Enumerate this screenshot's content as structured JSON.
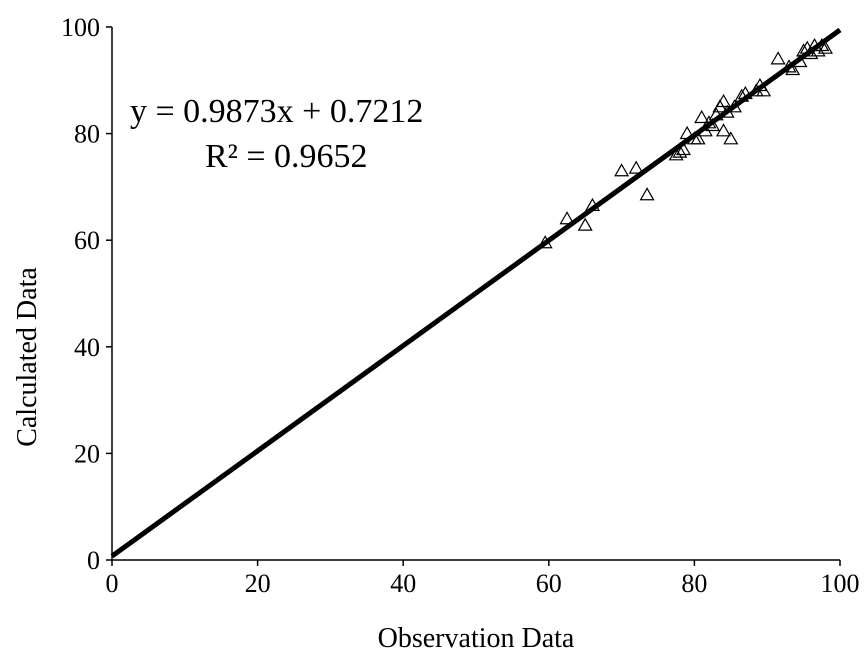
{
  "chart_data": {
    "type": "scatter",
    "xlabel": "Observation Data",
    "ylabel": "Calculated Data",
    "xlim": [
      0,
      100
    ],
    "ylim": [
      0,
      100
    ],
    "xticks": [
      0,
      20,
      40,
      60,
      80,
      100
    ],
    "yticks": [
      0,
      20,
      40,
      60,
      80,
      100
    ],
    "grid": false,
    "marker": "open-triangle",
    "colors": {
      "line": "#000000",
      "marker": "#000000",
      "background": "#ffffff"
    },
    "annotations": {
      "equation": "y = 0.9873x + 0.7212",
      "r_squared": "R² = 0.9652"
    },
    "trendline": {
      "slope": 0.9873,
      "intercept": 0.7212,
      "x_range": [
        0,
        100
      ]
    },
    "points": [
      [
        59.5,
        59.5
      ],
      [
        62.5,
        64.0
      ],
      [
        65.0,
        62.8
      ],
      [
        66.0,
        66.5
      ],
      [
        70.0,
        73.0
      ],
      [
        72.0,
        73.5
      ],
      [
        73.5,
        68.5
      ],
      [
        77.5,
        76.0
      ],
      [
        78.0,
        76.5
      ],
      [
        78.5,
        77.0
      ],
      [
        79.0,
        80.0
      ],
      [
        80.0,
        79.0
      ],
      [
        80.5,
        79.0
      ],
      [
        81.0,
        83.0
      ],
      [
        81.5,
        80.5
      ],
      [
        82.0,
        82.0
      ],
      [
        82.5,
        81.5
      ],
      [
        83.0,
        83.5
      ],
      [
        83.5,
        85.0
      ],
      [
        84.0,
        86.0
      ],
      [
        84.0,
        80.5
      ],
      [
        84.5,
        84.0
      ],
      [
        85.0,
        79.0
      ],
      [
        85.5,
        85.0
      ],
      [
        86.5,
        87.0
      ],
      [
        87.0,
        87.5
      ],
      [
        88.5,
        88.0
      ],
      [
        89.0,
        89.0
      ],
      [
        89.5,
        88.0
      ],
      [
        91.5,
        94.0
      ],
      [
        93.0,
        92.5
      ],
      [
        93.5,
        92.0
      ],
      [
        94.5,
        93.5
      ],
      [
        95.0,
        95.5
      ],
      [
        95.5,
        96.0
      ],
      [
        96.0,
        95.0
      ],
      [
        96.5,
        96.5
      ],
      [
        97.0,
        95.5
      ],
      [
        97.5,
        96.5
      ],
      [
        98.0,
        96.0
      ]
    ]
  }
}
